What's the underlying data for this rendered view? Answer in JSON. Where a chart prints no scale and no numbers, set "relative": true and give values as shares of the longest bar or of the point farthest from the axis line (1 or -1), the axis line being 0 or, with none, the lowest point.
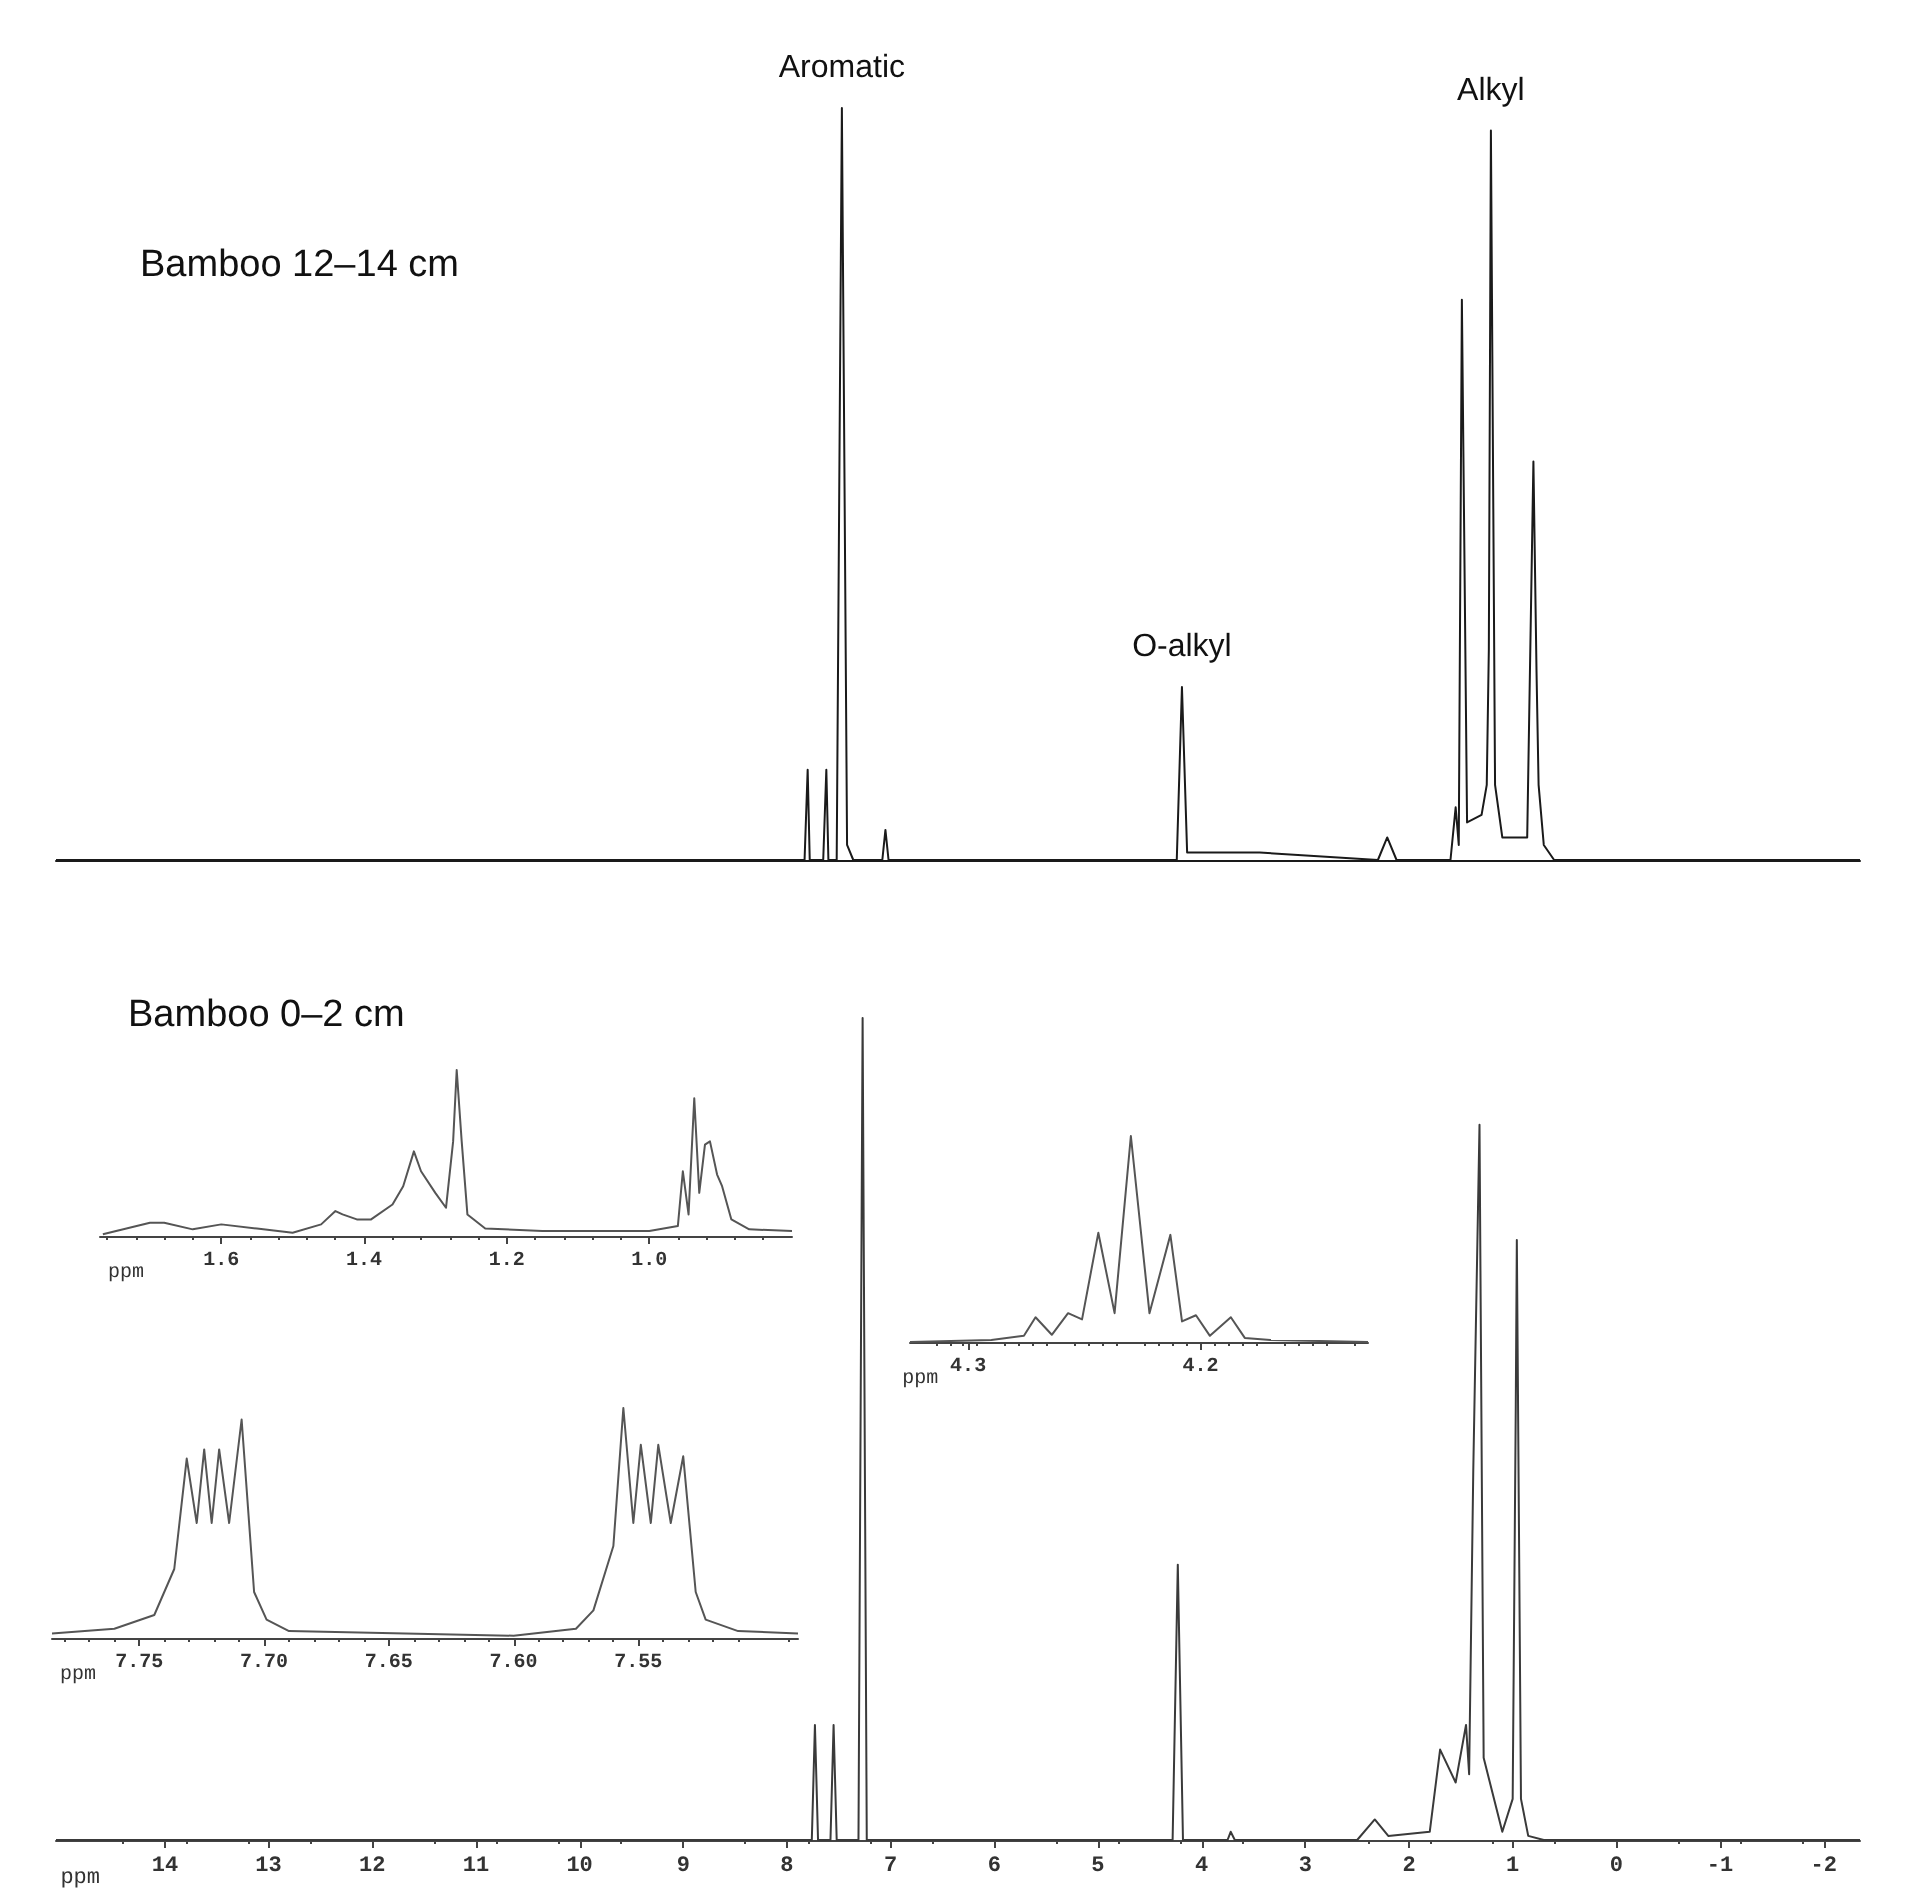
{
  "chart_data": [
    {
      "type": "line",
      "title": "Bamboo 12–14 cm",
      "relative": true,
      "tick_labels": false,
      "xlim": [
        15.05,
        -2.35
      ],
      "x": [
        15.05,
        8.0,
        7.83,
        7.8,
        7.78,
        7.65,
        7.62,
        7.6,
        7.52,
        7.47,
        7.42,
        7.36,
        7.08,
        7.05,
        7.02,
        4.24,
        4.19,
        4.14,
        3.44,
        2.3,
        2.21,
        2.12,
        1.6,
        1.55,
        1.52,
        1.49,
        1.44,
        1.3,
        1.25,
        1.23,
        1.21,
        1.17,
        1.1,
        0.86,
        0.8,
        0.77,
        0.75,
        0.7,
        0.6,
        -2.35
      ],
      "series": [
        {
          "color": "#1a1a1a",
          "values": [
            0,
            0,
            0,
            0.12,
            0,
            0,
            0.12,
            0,
            0,
            1,
            0.02,
            0,
            0,
            0.04,
            0,
            0,
            0.23,
            0.01,
            0.01,
            0,
            0.03,
            0,
            0,
            0.07,
            0.02,
            0.745,
            0.05,
            0.06,
            0.1,
            0.28,
            0.97,
            0.1,
            0.03,
            0.03,
            0.53,
            0.25,
            0.1,
            0.02,
            0,
            0
          ]
        }
      ],
      "annotations": [
        {
          "text": "Aromatic",
          "x": 7.47,
          "y": 1
        },
        {
          "text": "O-alkyl",
          "x": 4.19,
          "y": 0.23
        },
        {
          "text": "Alkyl",
          "x": 1.21,
          "y": 0.97
        }
      ]
    },
    {
      "type": "line",
      "title": "Bamboo 0–2 cm",
      "relative": true,
      "tick_labels": "x",
      "xlabel": "ppm",
      "xlim": [
        15.05,
        -2.35
      ],
      "xticks": [
        14,
        13,
        12,
        11,
        10,
        9,
        8,
        7,
        6,
        5,
        4,
        3,
        2,
        1,
        0,
        -1,
        -2
      ],
      "x": [
        15.05,
        7.8,
        7.76,
        7.73,
        7.7,
        7.58,
        7.55,
        7.52,
        7.31,
        7.27,
        7.23,
        4.28,
        4.23,
        4.18,
        3.75,
        3.72,
        3.68,
        2.5,
        2.33,
        2.2,
        1.8,
        1.7,
        1.55,
        1.45,
        1.42,
        1.38,
        1.32,
        1.28,
        1.1,
        1.0,
        0.97,
        0.96,
        0.92,
        0.85,
        0.7,
        -2.35
      ],
      "series": [
        {
          "color": "#3a3a3a",
          "values": [
            0,
            0,
            0,
            0.14,
            0,
            0,
            0.14,
            0,
            0,
            1,
            0,
            0,
            0.335,
            0,
            0,
            0.01,
            0,
            0,
            0.025,
            0.005,
            0.01,
            0.11,
            0.07,
            0.14,
            0.08,
            0.45,
            0.87,
            0.1,
            0.01,
            0.05,
            0.53,
            0.73,
            0.05,
            0.005,
            0,
            0
          ]
        }
      ]
    },
    {
      "type": "line",
      "relative": true,
      "tick_labels": "x",
      "xlabel": "ppm",
      "xlim": [
        1.77,
        0.8
      ],
      "xticks": [
        1.6,
        1.4,
        1.2,
        {
          "value": 1,
          "label": "1.0"
        }
      ],
      "x": [
        1.766,
        1.7,
        1.68,
        1.64,
        1.6,
        1.55,
        1.5,
        1.46,
        1.44,
        1.43,
        1.41,
        1.39,
        1.36,
        1.345,
        1.33,
        1.32,
        1.3,
        1.285,
        1.275,
        1.27,
        1.263,
        1.255,
        1.23,
        1.15,
        1.0,
        0.96,
        0.953,
        0.945,
        0.937,
        0.93,
        0.922,
        0.915,
        0.905,
        0.898,
        0.885,
        0.86,
        0.8
      ],
      "series": [
        {
          "color": "#555555",
          "values": [
            0.01,
            0.08,
            0.08,
            0.04,
            0.07,
            0.045,
            0.02,
            0.07,
            0.15,
            0.13,
            0.1,
            0.1,
            0.19,
            0.3,
            0.51,
            0.39,
            0.26,
            0.17,
            0.57,
            1,
            0.57,
            0.13,
            0.045,
            0.03,
            0.03,
            0.06,
            0.39,
            0.13,
            0.83,
            0.26,
            0.55,
            0.57,
            0.37,
            0.3,
            0.1,
            0.04,
            0.03
          ]
        }
      ]
    },
    {
      "type": "line",
      "relative": true,
      "tick_labels": "x",
      "xlabel": "ppm",
      "xlim": [
        4.325,
        4.128
      ],
      "xticks": [
        4.3,
        4.2
      ],
      "x": [
        4.325,
        4.29,
        4.276,
        4.271,
        4.264,
        4.257,
        4.251,
        4.244,
        4.237,
        4.23,
        4.222,
        4.213,
        4.208,
        4.202,
        4.196,
        4.187,
        4.181,
        4.17,
        4.128
      ],
      "series": [
        {
          "color": "#555555",
          "values": [
            0,
            0.01,
            0.03,
            0.12,
            0.035,
            0.14,
            0.11,
            0.53,
            0.14,
            1,
            0.14,
            0.52,
            0.1,
            0.13,
            0.03,
            0.12,
            0.02,
            0.01,
            0
          ]
        }
      ]
    },
    {
      "type": "line",
      "relative": true,
      "tick_labels": "x",
      "xlabel": "ppm",
      "xlim": [
        7.785,
        7.486
      ],
      "xticks": [
        7.75,
        {
          "value": 7.7,
          "label": "7.70"
        },
        7.65,
        {
          "value": 7.6,
          "label": "7.60"
        },
        7.55
      ],
      "x": [
        7.785,
        7.76,
        7.744,
        7.736,
        7.731,
        7.727,
        7.724,
        7.721,
        7.718,
        7.714,
        7.709,
        7.704,
        7.699,
        7.69,
        7.6,
        7.575,
        7.568,
        7.56,
        7.556,
        7.552,
        7.549,
        7.545,
        7.542,
        7.537,
        7.532,
        7.527,
        7.523,
        7.51,
        7.486
      ],
      "series": [
        {
          "color": "#555555",
          "values": [
            0.02,
            0.04,
            0.1,
            0.3,
            0.78,
            0.5,
            0.82,
            0.5,
            0.82,
            0.5,
            0.95,
            0.2,
            0.08,
            0.03,
            0.01,
            0.04,
            0.12,
            0.4,
            1,
            0.5,
            0.84,
            0.5,
            0.84,
            0.5,
            0.79,
            0.2,
            0.08,
            0.03,
            0.02
          ]
        }
      ]
    }
  ]
}
